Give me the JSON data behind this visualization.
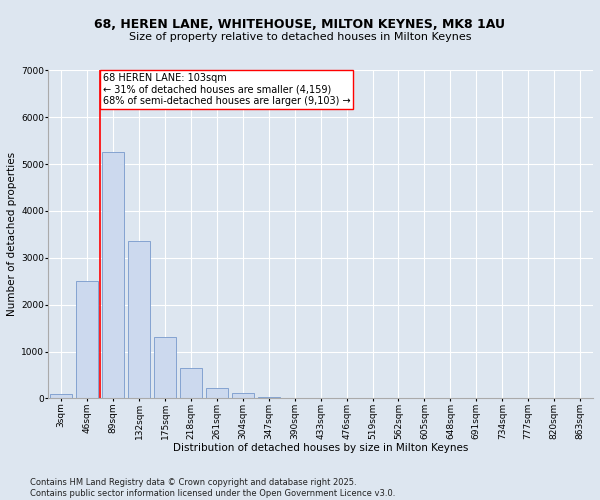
{
  "title_line1": "68, HEREN LANE, WHITEHOUSE, MILTON KEYNES, MK8 1AU",
  "title_line2": "Size of property relative to detached houses in Milton Keynes",
  "xlabel": "Distribution of detached houses by size in Milton Keynes",
  "ylabel": "Number of detached properties",
  "bar_labels": [
    "3sqm",
    "46sqm",
    "89sqm",
    "132sqm",
    "175sqm",
    "218sqm",
    "261sqm",
    "304sqm",
    "347sqm",
    "390sqm",
    "433sqm",
    "476sqm",
    "519sqm",
    "562sqm",
    "605sqm",
    "648sqm",
    "691sqm",
    "734sqm",
    "777sqm",
    "820sqm",
    "863sqm"
  ],
  "bar_values": [
    100,
    2500,
    5250,
    3350,
    1300,
    650,
    230,
    120,
    30,
    8,
    3,
    1,
    0,
    0,
    0,
    0,
    0,
    0,
    0,
    0,
    0
  ],
  "bar_color": "#ccd9ee",
  "bar_edge_color": "#7799cc",
  "vline_x": 2,
  "vline_color": "red",
  "annotation_text": "68 HEREN LANE: 103sqm\n← 31% of detached houses are smaller (4,159)\n68% of semi-detached houses are larger (9,103) →",
  "annotation_box_color": "white",
  "annotation_box_edge": "red",
  "ylim": [
    0,
    7000
  ],
  "yticks": [
    0,
    1000,
    2000,
    3000,
    4000,
    5000,
    6000,
    7000
  ],
  "bg_color": "#dde6f0",
  "plot_bg_color": "#dde6f0",
  "grid_color": "white",
  "footer_line1": "Contains HM Land Registry data © Crown copyright and database right 2025.",
  "footer_line2": "Contains public sector information licensed under the Open Government Licence v3.0.",
  "title_fontsize": 9,
  "subtitle_fontsize": 8,
  "axis_label_fontsize": 7.5,
  "tick_fontsize": 6.5,
  "annotation_fontsize": 7,
  "footer_fontsize": 6
}
